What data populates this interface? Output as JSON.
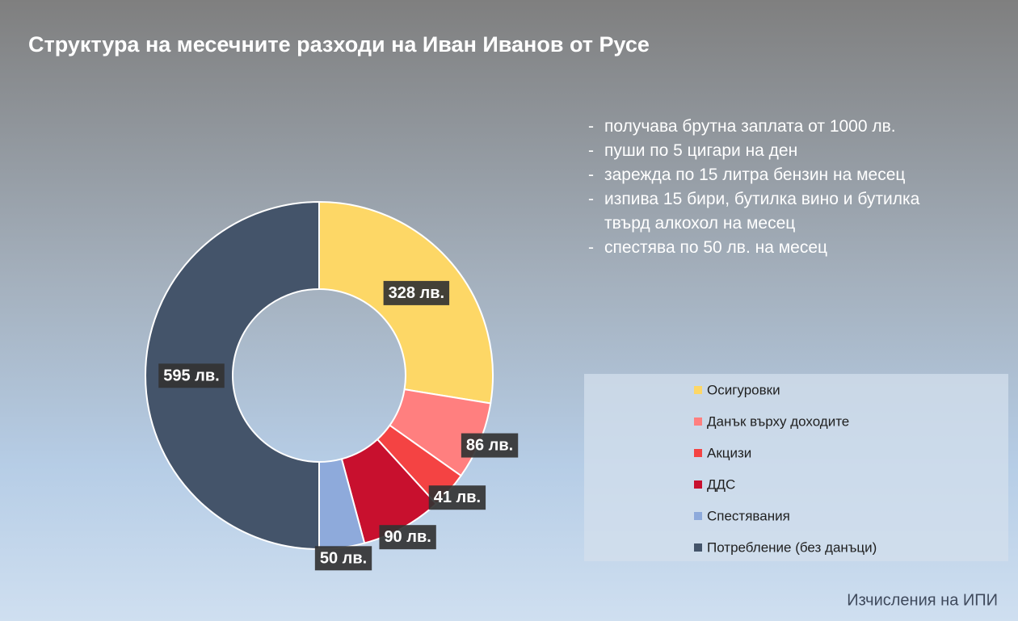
{
  "chart_data": {
    "type": "donut",
    "title": "Структура на месечните разходи на Иван Иванов от Русе",
    "categories": [
      "Осигуровки",
      "Данък върху доходите",
      "Акцизи",
      "ДДС",
      "Спестявания",
      "Потребление (без данъци)"
    ],
    "values": [
      328,
      86,
      41,
      90,
      50,
      595
    ],
    "value_labels": [
      "328 лв.",
      "86 лв.",
      "41 лв.",
      "90 лв.",
      "50 лв.",
      "595 лв."
    ],
    "colors": [
      "#fdd766",
      "#ff7f7f",
      "#f44343",
      "#c8102e",
      "#8eaadb",
      "#44546a"
    ],
    "notes": [
      "получава брутна заплата от 1000 лв.",
      "пуши по 5 цигари на ден",
      "зарежда по 15 литра бензин на месец",
      "изпива 15 бири, бутилка вино и бутилка твърд алкохол на месец",
      "спестява по 50 лв. на месец"
    ],
    "source": "Изчисления на ИПИ"
  }
}
